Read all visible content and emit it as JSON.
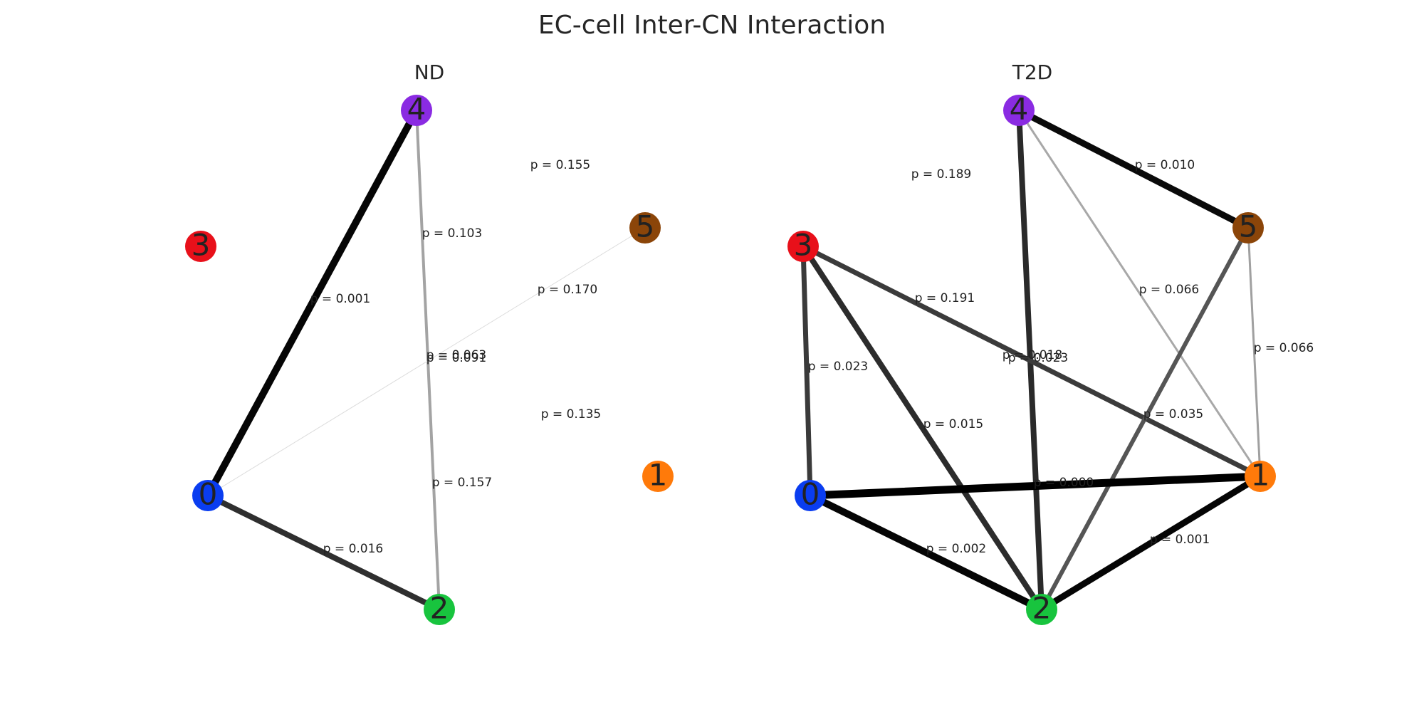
{
  "title": "EC-cell Inter-CN Interaction",
  "node_colors": {
    "0": "#0a3df0",
    "1": "#ff7a0a",
    "2": "#18c43e",
    "3": "#e8101a",
    "4": "#8a2be2",
    "5": "#8b4509"
  },
  "panels": [
    {
      "title": "ND",
      "nodes": [
        "0",
        "1",
        "2",
        "3",
        "4",
        "5"
      ],
      "edges": [
        {
          "source": "0",
          "target": "4",
          "label": "p = 0.001"
        },
        {
          "source": "4",
          "target": "2",
          "label": "p = 0.103"
        },
        {
          "source": "0",
          "target": "5",
          "label": "p = 0.170"
        },
        {
          "source": "0",
          "target": "2",
          "label": "p = 0.016"
        }
      ],
      "floating_labels": [
        {
          "text": "p = 0.155"
        },
        {
          "text": "p = 0.063"
        },
        {
          "text": "p = 0.091"
        },
        {
          "text": "p = 0.135"
        },
        {
          "text": "p = 0.157"
        }
      ]
    },
    {
      "title": "T2D",
      "nodes": [
        "0",
        "1",
        "2",
        "3",
        "4",
        "5"
      ],
      "edges": [
        {
          "source": "4",
          "target": "5",
          "label": "p = 0.010"
        },
        {
          "source": "4",
          "target": "2",
          "label": "p = 0.018"
        },
        {
          "source": "4",
          "target": "1",
          "label": "p = 0.066"
        },
        {
          "source": "3",
          "target": "0",
          "label": "p = 0.023"
        },
        {
          "source": "3",
          "target": "2",
          "label": "p = 0.015"
        },
        {
          "source": "3",
          "target": "1",
          "label": "p = 0.191"
        },
        {
          "source": "5",
          "target": "2",
          "label": "p = 0.035"
        },
        {
          "source": "5",
          "target": "1",
          "label": "p = 0.066"
        },
        {
          "source": "0",
          "target": "1",
          "label": "p = 0.000"
        },
        {
          "source": "0",
          "target": "2",
          "label": "p = 0.002"
        },
        {
          "source": "2",
          "target": "1",
          "label": "p = 0.001"
        }
      ],
      "floating_labels": [
        {
          "text": "p = 0.189"
        },
        {
          "text": "p = 0.023"
        }
      ]
    }
  ]
}
